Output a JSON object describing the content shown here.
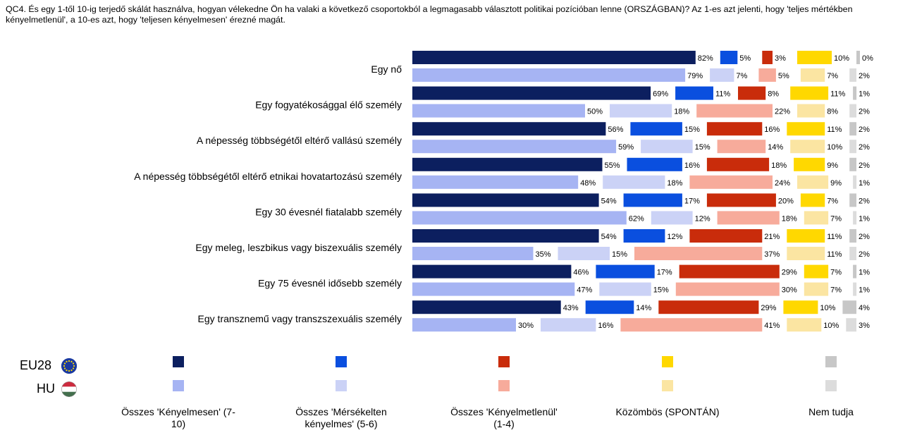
{
  "question": "QC4. És egy 1-től 10-ig terjedő skálát használva, hogyan vélekedne Ön ha valaki a következő csoportokból a legmagasabb választott politikai pozícióban lenne (ORSZÁGBAN)? Az 1-es azt jelenti, hogy 'teljes mértékben kényelmetlenül', a 10-es azt, hogy 'teljesen kényelmesen' érezné magát.",
  "legend": {
    "eu_label": "EU28",
    "hu_label": "HU",
    "eu_flag_icon": "eu-flag-icon",
    "hu_flag_icon": "hungary-flag-icon",
    "items": [
      {
        "label": "Összes 'Kényelmesen' (7-10)",
        "eu_color": "#0c1f5f",
        "hu_color": "#a6b4f3"
      },
      {
        "label": "Összes 'Mérsékelten kényelmes' (5-6)",
        "eu_color": "#0a4fdf",
        "hu_color": "#cbd2f6"
      },
      {
        "label": "Összes 'Kényelmetlenül' (1-4)",
        "eu_color": "#c92c0b",
        "hu_color": "#f7ab9b"
      },
      {
        "label": "Közömbös (SPONTÁN)",
        "eu_color": "#ffd800",
        "hu_color": "#fbe5a2"
      },
      {
        "label": "Nem tudja",
        "eu_color": "#c7c7c7",
        "hu_color": "#dcdcdc"
      }
    ]
  },
  "chart_data": {
    "type": "bar",
    "orientation": "horizontal",
    "stacked": false,
    "xlim": [
      0,
      100
    ],
    "value_suffix": "%",
    "categories": [
      "Egy nő",
      "Egy fogyatékosággal élő személy",
      "A népesség többségétől eltérő vallású személy",
      "A népesség többségétől eltérő etnikai hovatartozású személy",
      "Egy 30 évesnél fiatalabb személy",
      "Egy meleg, leszbikus vagy biszexuális személy",
      "Egy 75 évesnél idősebb személy",
      "Egy transznemű vagy transzszexuális személy"
    ],
    "response_labels": [
      "Összes 'Kényelmesen' (7-10)",
      "Összes 'Mérsékelten kényelmes' (5-6)",
      "Összes 'Kényelmetlenül' (1-4)",
      "Közömbös (SPONTÁN)",
      "Nem tudja"
    ],
    "series": [
      {
        "name": "EU28",
        "values": [
          [
            82,
            5,
            3,
            10,
            0
          ],
          [
            69,
            11,
            8,
            11,
            1
          ],
          [
            56,
            15,
            16,
            11,
            2
          ],
          [
            55,
            16,
            18,
            9,
            2
          ],
          [
            54,
            17,
            20,
            7,
            2
          ],
          [
            54,
            12,
            21,
            11,
            2
          ],
          [
            46,
            17,
            29,
            7,
            1
          ],
          [
            43,
            14,
            29,
            10,
            4
          ]
        ]
      },
      {
        "name": "HU",
        "values": [
          [
            79,
            7,
            5,
            7,
            2
          ],
          [
            50,
            18,
            22,
            8,
            2
          ],
          [
            59,
            15,
            14,
            10,
            2
          ],
          [
            48,
            18,
            24,
            9,
            1
          ],
          [
            62,
            12,
            18,
            7,
            1
          ],
          [
            35,
            15,
            37,
            11,
            2
          ],
          [
            47,
            15,
            30,
            7,
            1
          ],
          [
            30,
            16,
            41,
            10,
            3
          ]
        ]
      }
    ]
  }
}
